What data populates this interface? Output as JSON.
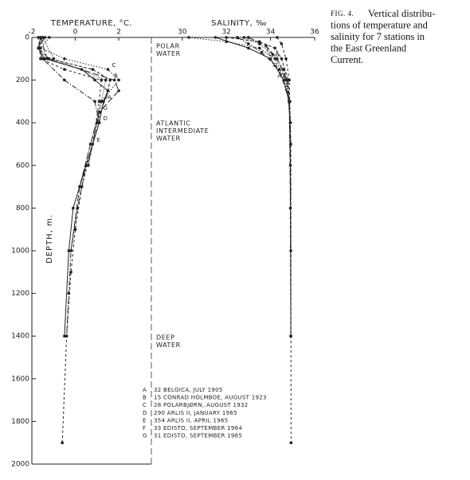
{
  "figure_label": "FIG. 4.",
  "caption_lines": [
    "Vertical distribu-",
    "tions of temperature and",
    "salinity for 7 stations in",
    "the East Greenland",
    "Current."
  ],
  "chart_data": [
    {
      "type": "profile",
      "title": "TEMPERATURE, °C.",
      "y_label": "DEPTH, m.",
      "xlim": [
        -2,
        3.5
      ],
      "xticks": [
        -2,
        0,
        2
      ],
      "ylim": [
        0,
        2000
      ],
      "yticks": [
        0,
        200,
        400,
        600,
        800,
        1000,
        1200,
        1400,
        1600,
        1800,
        2000
      ],
      "y_inverted": true,
      "annotations": [
        [
          "POLAR",
          "WATER"
        ],
        [
          "ATLANTIC",
          "INTERMEDIATE",
          "WATER"
        ],
        [
          "DEEP",
          "WATER"
        ]
      ],
      "series": [
        {
          "name": "32 BELGICA, JULY 1905",
          "label": "A",
          "color": "#222",
          "x": [
            -1.6,
            -1.7,
            -1.4,
            0.3,
            0.9,
            1.5,
            1.3,
            1.1,
            0.5,
            -0.1,
            -0.3,
            -0.5
          ],
          "y": [
            0,
            50,
            100,
            150,
            200,
            250,
            300,
            400,
            600,
            800,
            1000,
            1400
          ]
        },
        {
          "name": "15 CONRAD HOLMBOE, AUGUST 1923",
          "label": "B",
          "color": "#222",
          "x": [
            -1.5,
            -1.7,
            -1.2,
            0.8,
            1.6,
            1.5,
            1.0,
            0.6
          ],
          "y": [
            0,
            50,
            100,
            150,
            200,
            250,
            400,
            600
          ]
        },
        {
          "name": "28 POLARBJØRN, AUGUST 1932",
          "label": "C",
          "color": "#222",
          "x": [
            -1.2,
            -1.6,
            -0.5,
            1.5,
            2.0,
            1.2,
            1.0
          ],
          "y": [
            0,
            50,
            100,
            150,
            200,
            300,
            400
          ]
        },
        {
          "name": "290 ARLIS II, JANUARY 1965",
          "label": "D",
          "color": "#222",
          "x": [
            -1.4,
            -1.7,
            -1.5,
            -0.5,
            0.9,
            1.1,
            0.5,
            0.1,
            -0.2,
            -0.3,
            -0.4
          ],
          "y": [
            0,
            50,
            100,
            200,
            300,
            400,
            600,
            800,
            1000,
            1200,
            1400
          ]
        },
        {
          "name": "354 ARLIS II, APRIL 1965",
          "label": "E",
          "color": "#222",
          "x": [
            -1.7,
            -1.6,
            -0.5,
            1.2,
            1.1,
            0.8,
            0.3,
            0,
            -0.2,
            -0.4,
            -0.6
          ],
          "y": [
            0,
            100,
            150,
            200,
            300,
            500,
            700,
            900,
            1100,
            1400,
            1900
          ]
        },
        {
          "name": "33 EDISTO, SEPTEMBER 1964",
          "label": "F",
          "color": "#222",
          "x": [
            -1.5,
            -1.0,
            1.4,
            1.2,
            0.7,
            0.2
          ],
          "y": [
            0,
            100,
            200,
            300,
            500,
            700
          ]
        },
        {
          "name": "31 EDISTO, SEPTEMBER 1965",
          "label": "G",
          "color": "#222",
          "x": [
            -1.6,
            -1.3,
            1.8,
            2.0,
            1.1,
            0.7,
            0.2,
            -0.2
          ],
          "y": [
            0,
            100,
            200,
            250,
            350,
            500,
            700,
            1000
          ]
        }
      ]
    },
    {
      "type": "profile",
      "title": "SALINITY, ‰",
      "xlim": [
        28.6,
        36
      ],
      "xticks": [
        30,
        32,
        34,
        36
      ],
      "ylim": [
        0,
        2000
      ],
      "y_inverted": true,
      "series": [
        {
          "name": "32 BELGICA, JULY 1905",
          "label": "A",
          "color": "#222",
          "x": [
            31.5,
            33.0,
            34.0,
            34.6,
            34.85,
            34.9,
            34.92
          ],
          "y": [
            0,
            50,
            100,
            200,
            300,
            600,
            1400
          ]
        },
        {
          "name": "15 CONRAD HOLMBOE, AUGUST 1923",
          "label": "B",
          "color": "#222",
          "x": [
            32.0,
            33.5,
            34.2,
            34.5,
            34.8,
            34.9
          ],
          "y": [
            0,
            20,
            50,
            100,
            200,
            400
          ]
        },
        {
          "name": "28 POLARBJØRN, AUGUST 1932",
          "label": "C",
          "color": "#222",
          "x": [
            30.3,
            32.0,
            33.5,
            34.2,
            34.7,
            34.9
          ],
          "y": [
            0,
            20,
            50,
            100,
            200,
            400
          ]
        },
        {
          "name": "290 ARLIS II, JANUARY 1965",
          "label": "D",
          "color": "#222",
          "x": [
            32.5,
            33.0,
            33.6,
            34.4,
            34.85,
            34.9,
            34.92
          ],
          "y": [
            0,
            30,
            70,
            150,
            300,
            800,
            1400
          ]
        },
        {
          "name": "354 ARLIS II, APRIL 1965",
          "label": "E",
          "color": "#222",
          "x": [
            34.3,
            34.5,
            34.7,
            34.85,
            34.92,
            34.93
          ],
          "y": [
            0,
            30,
            100,
            200,
            500,
            1900
          ]
        },
        {
          "name": "33 EDISTO, SEPTEMBER 1964",
          "label": "F",
          "color": "#222",
          "x": [
            32.8,
            33.5,
            34.1,
            34.6,
            34.88
          ],
          "y": [
            0,
            30,
            80,
            150,
            300
          ]
        },
        {
          "name": "31 EDISTO, SEPTEMBER 1965",
          "label": "G",
          "color": "#222",
          "x": [
            33.0,
            33.8,
            34.3,
            34.75,
            34.9,
            34.92
          ],
          "y": [
            0,
            40,
            100,
            200,
            400,
            1000
          ]
        }
      ]
    }
  ]
}
